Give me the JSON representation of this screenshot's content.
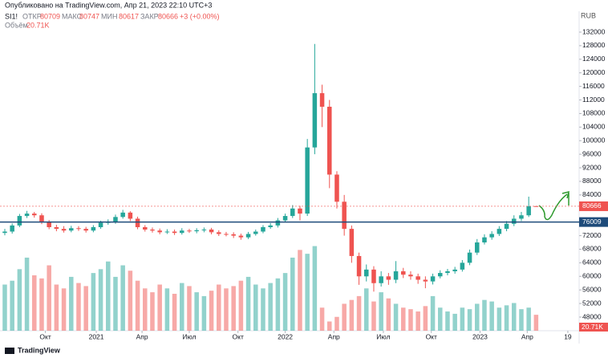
{
  "header": {
    "published": "Опубликовано на TradingView.com, Апр 21, 2023 22:10 UTC+3"
  },
  "legend": {
    "symbol": "SI1!",
    "fields": [
      {
        "label": "ОТКР",
        "value": 80709
      },
      {
        "label": "МАКС",
        "value": 80747
      },
      {
        "label": "МИН",
        "value": 80617
      },
      {
        "label": "ЗАКР",
        "value": 80666
      }
    ],
    "change": "+3 (+0.00%)",
    "volume_name": "Объём",
    "volume_value": "20.71K"
  },
  "footer": {
    "brand": "TradingView"
  },
  "chart_data": {
    "type": "candlestick",
    "currency": "RUB",
    "up_color": "#26a69a",
    "down_color": "#ef5350",
    "xlim": [
      -0.65,
      77.83
    ],
    "xticks": [
      {
        "value": 5.5,
        "label": "Окт"
      },
      {
        "value": 12.4,
        "label": "2021"
      },
      {
        "value": 18.6,
        "label": "Апр"
      },
      {
        "value": 25,
        "label": "Июл"
      },
      {
        "value": 31.6,
        "label": "Окт"
      },
      {
        "value": 38,
        "label": "2022"
      },
      {
        "value": 44.6,
        "label": "Апр"
      },
      {
        "value": 51.3,
        "label": "Июл"
      },
      {
        "value": 57.8,
        "label": "Окт"
      },
      {
        "value": 64.4,
        "label": "2023"
      },
      {
        "value": 70.8,
        "label": "Апр"
      },
      {
        "value": 76.3,
        "label": "19"
      }
    ],
    "ylim": [
      48000,
      132000
    ],
    "yticks": [
      48000,
      52000,
      56000,
      60000,
      64000,
      68000,
      72000,
      76000,
      80000,
      84000,
      88000,
      92000,
      96000,
      100000,
      104000,
      108000,
      112000,
      116000,
      120000,
      124000,
      128000,
      132000
    ],
    "grid": false,
    "open": [
      72800,
      73200,
      75000,
      77800,
      78500,
      78000,
      76000,
      74500,
      74000,
      73500,
      74200,
      74000,
      73500,
      74500,
      75800,
      76000,
      77500,
      78800,
      77000,
      74500,
      73800,
      73500,
      73000,
      73200,
      72800,
      73500,
      73300,
      73600,
      73800,
      73000,
      72500,
      72400,
      72000,
      71500,
      72500,
      73200,
      74500,
      75000,
      76500,
      77800,
      80000,
      78500,
      98000,
      114000,
      110000,
      90000,
      82000,
      74000,
      66000,
      60000,
      62000,
      58000,
      60000,
      59000,
      61500,
      60500,
      60000,
      59000,
      58500,
      60000,
      61000,
      61500,
      62000,
      64000,
      67000,
      70000,
      71500,
      72500,
      74000,
      75500,
      77000,
      78000,
      80709
    ],
    "high": [
      74000,
      75600,
      78400,
      79300,
      79000,
      78600,
      76600,
      75200,
      74800,
      74900,
      74800,
      74600,
      75100,
      76400,
      76800,
      78200,
      79600,
      79200,
      77600,
      75100,
      74400,
      74100,
      73900,
      73800,
      74200,
      74000,
      74200,
      74400,
      74300,
      73600,
      73100,
      73000,
      72600,
      73100,
      73800,
      75100,
      75700,
      77200,
      78500,
      81000,
      80800,
      100500,
      128500,
      116500,
      112000,
      91000,
      84000,
      75000,
      67000,
      63500,
      63000,
      61500,
      61000,
      64500,
      62500,
      61500,
      60800,
      60000,
      60800,
      61800,
      62200,
      62800,
      64800,
      67900,
      71000,
      72400,
      73300,
      74800,
      76300,
      78000,
      79000,
      83500,
      80747
    ],
    "low": [
      72100,
      72600,
      74500,
      77200,
      77300,
      75400,
      73900,
      73300,
      72900,
      73000,
      73400,
      72900,
      73000,
      74000,
      75200,
      75500,
      77000,
      76300,
      73900,
      73200,
      72900,
      72400,
      72500,
      72200,
      72300,
      72800,
      72700,
      73000,
      72400,
      71900,
      71800,
      71300,
      70800,
      71000,
      72000,
      72700,
      74000,
      74400,
      76000,
      77200,
      76500,
      77800,
      96000,
      104000,
      86000,
      80000,
      72000,
      64000,
      57500,
      58500,
      55500,
      57000,
      57500,
      58000,
      59500,
      59000,
      57800,
      56500,
      57600,
      59400,
      60300,
      60800,
      61400,
      63300,
      66300,
      69400,
      70800,
      71900,
      73300,
      74800,
      76300,
      77500,
      80617
    ],
    "close": [
      73200,
      75000,
      77800,
      78500,
      78000,
      76000,
      74500,
      74000,
      73500,
      74200,
      74000,
      73500,
      74500,
      75800,
      76000,
      77500,
      78800,
      77000,
      74500,
      73800,
      73500,
      73000,
      73200,
      72800,
      73500,
      73300,
      73600,
      73800,
      73000,
      72500,
      72400,
      72000,
      71500,
      72500,
      73200,
      74500,
      75000,
      76500,
      77800,
      80000,
      78500,
      98000,
      114000,
      110000,
      90000,
      82000,
      74000,
      66000,
      60000,
      62000,
      58000,
      60000,
      59000,
      61500,
      60500,
      60000,
      59000,
      58500,
      60000,
      61000,
      61500,
      62000,
      64000,
      67000,
      70000,
      71500,
      72500,
      74000,
      75500,
      77000,
      78000,
      80663,
      80666
    ],
    "volume_lim": [
      0,
      120
    ],
    "volume": [
      60,
      65,
      80,
      95,
      72,
      68,
      85,
      60,
      55,
      70,
      62,
      58,
      75,
      80,
      90,
      70,
      85,
      78,
      65,
      55,
      50,
      60,
      55,
      48,
      62,
      58,
      50,
      45,
      52,
      60,
      55,
      58,
      65,
      70,
      60,
      55,
      62,
      68,
      75,
      95,
      105,
      100,
      110,
      30,
      12,
      18,
      35,
      40,
      45,
      55,
      38,
      50,
      42,
      35,
      30,
      28,
      25,
      32,
      45,
      30,
      25,
      22,
      30,
      28,
      35,
      40,
      38,
      30,
      33,
      36,
      28,
      30,
      20.71
    ],
    "volume_label": {
      "value": 20.71,
      "label": "20.71K"
    },
    "price_line": {
      "value": 80666,
      "color": "#ef5350"
    },
    "hline": {
      "value": 76009,
      "color": "#1e4b7a"
    }
  }
}
